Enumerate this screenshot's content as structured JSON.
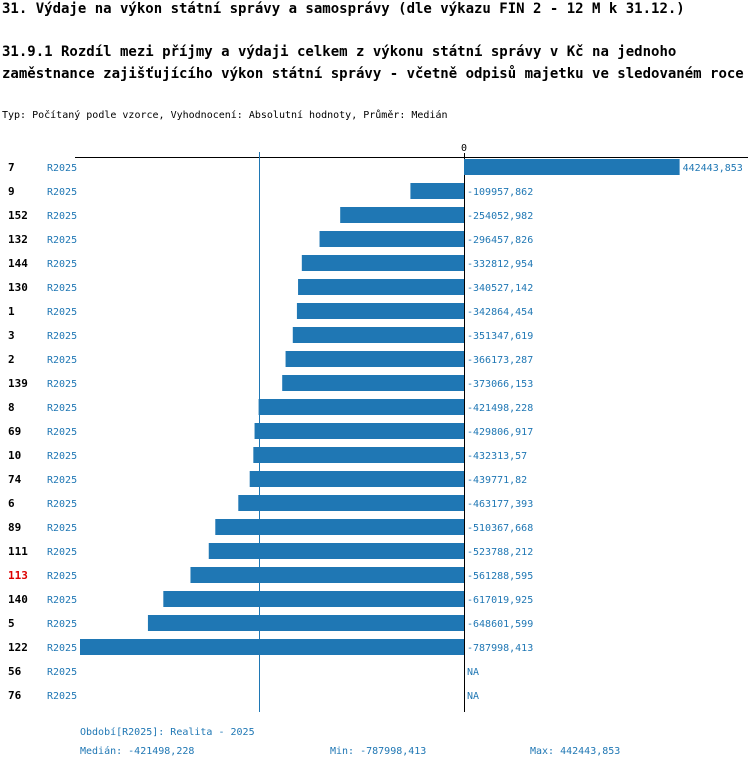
{
  "title": "31. Výdaje na výkon státní správy a samosprávy (dle výkazu FIN 2 - 12 M k 31.12.)",
  "subtitle": "31.9.1 Rozdíl mezi příjmy a výdaji celkem z výkonu státní správy v Kč na jednoho zaměstnance zajišťujícího výkon státní správy - včetně odpisů majetku ve sledovaném roce",
  "type_line": "Typ: Počítaný podle vzorce, Vyhodnocení: Absolutní hodnoty, Průměr: Medián",
  "colors": {
    "bar": "#1f77b4",
    "text": "#1f77b4",
    "highlight": "#dd0000",
    "axis": "#000000"
  },
  "chart_data": {
    "type": "bar",
    "orientation": "horizontal",
    "zero_label": "0",
    "xlim": [
      -800000,
      455000
    ],
    "reference_line": -421498.228,
    "series_label": "R2025",
    "rows": [
      {
        "id": "7",
        "series": "R2025",
        "value": 442443.853,
        "label": "442443,853",
        "highlight": false
      },
      {
        "id": "9",
        "series": "R2025",
        "value": -109957.862,
        "label": "-109957,862",
        "highlight": false
      },
      {
        "id": "152",
        "series": "R2025",
        "value": -254052.982,
        "label": "-254052,982",
        "highlight": false
      },
      {
        "id": "132",
        "series": "R2025",
        "value": -296457.826,
        "label": "-296457,826",
        "highlight": false
      },
      {
        "id": "144",
        "series": "R2025",
        "value": -332812.954,
        "label": "-332812,954",
        "highlight": false
      },
      {
        "id": "130",
        "series": "R2025",
        "value": -340527.142,
        "label": "-340527,142",
        "highlight": false
      },
      {
        "id": "1",
        "series": "R2025",
        "value": -342864.454,
        "label": "-342864,454",
        "highlight": false
      },
      {
        "id": "3",
        "series": "R2025",
        "value": -351347.619,
        "label": "-351347,619",
        "highlight": false
      },
      {
        "id": "2",
        "series": "R2025",
        "value": -366173.287,
        "label": "-366173,287",
        "highlight": false
      },
      {
        "id": "139",
        "series": "R2025",
        "value": -373066.153,
        "label": "-373066,153",
        "highlight": false
      },
      {
        "id": "8",
        "series": "R2025",
        "value": -421498.228,
        "label": "-421498,228",
        "highlight": false
      },
      {
        "id": "69",
        "series": "R2025",
        "value": -429806.917,
        "label": "-429806,917",
        "highlight": false
      },
      {
        "id": "10",
        "series": "R2025",
        "value": -432313.57,
        "label": "-432313,57",
        "highlight": false
      },
      {
        "id": "74",
        "series": "R2025",
        "value": -439771.82,
        "label": "-439771,82",
        "highlight": false
      },
      {
        "id": "6",
        "series": "R2025",
        "value": -463177.393,
        "label": "-463177,393",
        "highlight": false
      },
      {
        "id": "89",
        "series": "R2025",
        "value": -510367.668,
        "label": "-510367,668",
        "highlight": false
      },
      {
        "id": "111",
        "series": "R2025",
        "value": -523788.212,
        "label": "-523788,212",
        "highlight": false
      },
      {
        "id": "113",
        "series": "R2025",
        "value": -561288.595,
        "label": "-561288,595",
        "highlight": true
      },
      {
        "id": "140",
        "series": "R2025",
        "value": -617019.925,
        "label": "-617019,925",
        "highlight": false
      },
      {
        "id": "5",
        "series": "R2025",
        "value": -648601.599,
        "label": "-648601,599",
        "highlight": false
      },
      {
        "id": "122",
        "series": "R2025",
        "value": -787998.413,
        "label": "-787998,413",
        "highlight": false
      },
      {
        "id": "56",
        "series": "R2025",
        "value": null,
        "label": "NA",
        "highlight": false
      },
      {
        "id": "76",
        "series": "R2025",
        "value": null,
        "label": "NA",
        "highlight": false
      }
    ]
  },
  "footer": {
    "period": "Období[R2025]: Realita - 2025",
    "median": "Medián: -421498,228",
    "min": "Min: -787998,413",
    "max": "Max: 442443,853"
  }
}
